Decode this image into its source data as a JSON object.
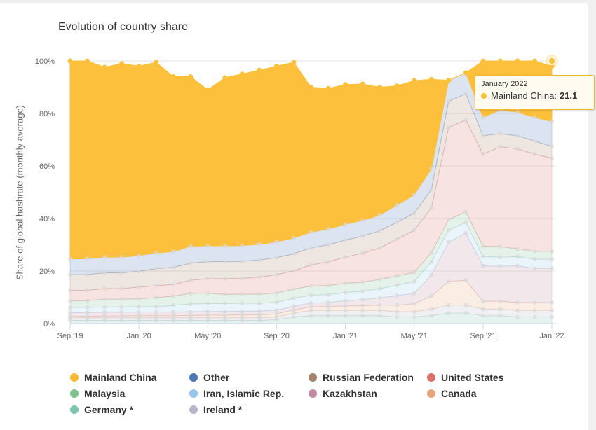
{
  "title": "Evolution of country share",
  "tooltip": {
    "date": "January 2022",
    "series": "Mainland China:",
    "value": "21.1",
    "color": "#fdc03c"
  },
  "legend": [
    {
      "label": "Mainland China",
      "color": "#f9b931"
    },
    {
      "label": "Other",
      "color": "#4c78b5"
    },
    {
      "label": "Russian Federation",
      "color": "#a6826a"
    },
    {
      "label": "United States",
      "color": "#d9716c"
    },
    {
      "label": "Malaysia",
      "color": "#7fc08f"
    },
    {
      "label": "Iran, Islamic Rep.",
      "color": "#98c6ea"
    },
    {
      "label": "Kazakhstan",
      "color": "#c08aa2"
    },
    {
      "label": "Canada",
      "color": "#e8a37a"
    },
    {
      "label": "Germany *",
      "color": "#7cc3b0"
    },
    {
      "label": "Ireland *",
      "color": "#b6b6c8"
    }
  ],
  "chart_data": {
    "type": "area",
    "title": "Evolution of country share",
    "ylabel": "Share of global hashrate (monthly average)",
    "xlabel": "",
    "ylim": [
      0,
      100
    ],
    "stacking": "percent",
    "x": [
      "Sep '19",
      "Oct '19",
      "Nov '19",
      "Dec '19",
      "Jan '20",
      "Feb '20",
      "Mar '20",
      "Apr '20",
      "May '20",
      "Jun '20",
      "Jul '20",
      "Aug '20",
      "Sep '20",
      "Oct '20",
      "Nov '20",
      "Dec '20",
      "Jan '21",
      "Feb '21",
      "Mar '21",
      "Apr '21",
      "May '21",
      "Jun '21",
      "Jul '21",
      "Aug '21",
      "Sep '21",
      "Oct '21",
      "Nov '21",
      "Dec '21",
      "Jan '22"
    ],
    "x_tick_labels": [
      "Sep '19",
      "Jan '20",
      "May '20",
      "Sep '20",
      "Jan '21",
      "May '21",
      "Sep '21",
      "Jan '22"
    ],
    "y_tick_labels": [
      "0%",
      "20%",
      "40%",
      "60%",
      "80%",
      "100%"
    ],
    "legend_position": "bottom",
    "series": [
      {
        "name": "Germany *",
        "values": [
          1.2,
          1.2,
          1.2,
          1.2,
          1.2,
          1.2,
          1.2,
          1.2,
          1.2,
          1.2,
          1.2,
          1.2,
          1.5,
          2.5,
          3,
          3,
          3,
          3,
          3,
          2.5,
          2.5,
          3,
          4,
          4,
          3,
          3,
          2.5,
          2.5,
          2.5
        ]
      },
      {
        "name": "Ireland *",
        "values": [
          1,
          1,
          1,
          1,
          1,
          1,
          1,
          1,
          1,
          1,
          1,
          1,
          1,
          1.5,
          2,
          2,
          2,
          2,
          2,
          2,
          2,
          2.5,
          3,
          3,
          2.5,
          2.5,
          2.5,
          2.5,
          2.5
        ]
      },
      {
        "name": "Canada",
        "values": [
          0.5,
          0.6,
          0.7,
          0.7,
          0.8,
          0.8,
          0.8,
          0.9,
          1,
          1,
          1.1,
          1.1,
          1.2,
          1.2,
          1.4,
          1.5,
          1.7,
          1.8,
          2,
          2.5,
          3,
          5,
          9,
          9.5,
          3,
          3,
          3,
          3,
          3
        ]
      },
      {
        "name": "Kazakhstan",
        "values": [
          1.4,
          1.4,
          1.4,
          1.4,
          1.4,
          1.4,
          1.4,
          1.4,
          1.4,
          1.4,
          1.4,
          1.4,
          1.4,
          1.4,
          1.4,
          1.5,
          2,
          2.3,
          2.8,
          3.6,
          4,
          8,
          15,
          18,
          13.5,
          13.3,
          14,
          13,
          13
        ]
      },
      {
        "name": "Iran, Islamic Rep.",
        "values": [
          2,
          2,
          2,
          2,
          2,
          2,
          2.5,
          3,
          3,
          3,
          3,
          3,
          3,
          3,
          3,
          3,
          3.1,
          3.2,
          3.5,
          4,
          4.5,
          5,
          4.6,
          4,
          3.5,
          3.5,
          3.5,
          3.5,
          3.5
        ]
      },
      {
        "name": "Malaysia",
        "values": [
          2.5,
          2.5,
          3,
          3,
          3,
          3.5,
          3.5,
          4,
          4,
          3.5,
          3.5,
          3.5,
          3.5,
          3.5,
          3.5,
          3.5,
          3.5,
          3.5,
          3.5,
          3.5,
          3.5,
          3.5,
          4,
          4,
          4,
          4,
          3,
          3,
          3
        ]
      },
      {
        "name": "United States",
        "values": [
          4,
          4,
          4,
          4,
          4.5,
          4.5,
          4.5,
          5,
          5.5,
          6,
          6,
          6.5,
          7,
          7,
          8,
          9,
          10,
          11,
          12,
          14,
          16,
          17,
          35,
          35,
          35,
          38,
          38,
          37,
          35.4
        ]
      },
      {
        "name": "Russian Federation",
        "values": [
          6,
          6,
          6,
          6,
          6,
          6.5,
          6.5,
          6.5,
          6.5,
          6.5,
          6.5,
          6.5,
          6.5,
          6.5,
          6.5,
          6.5,
          6.5,
          6.5,
          6.5,
          6.5,
          6.5,
          7,
          10,
          10,
          7,
          5,
          5,
          5,
          4.5
        ]
      },
      {
        "name": "Other",
        "values": [
          6,
          6,
          6,
          6,
          6,
          6,
          6,
          6.5,
          6,
          6,
          6,
          6,
          6,
          6,
          6,
          6,
          6,
          6,
          6,
          6.5,
          7,
          8,
          8,
          8,
          7,
          9,
          9,
          9,
          9.5
        ]
      },
      {
        "name": "Mainland China",
        "values": [
          75.4,
          75.3,
          72.3,
          73.7,
          72.1,
          72.6,
          66.6,
          64.5,
          59.4,
          64,
          65.3,
          66.3,
          66.9,
          66.9,
          55.2,
          53.5,
          53.2,
          51.9,
          48.7,
          45.4,
          43.5,
          34,
          0,
          0,
          21.5,
          18.7,
          19.5,
          21.5,
          21.1
        ]
      }
    ]
  }
}
